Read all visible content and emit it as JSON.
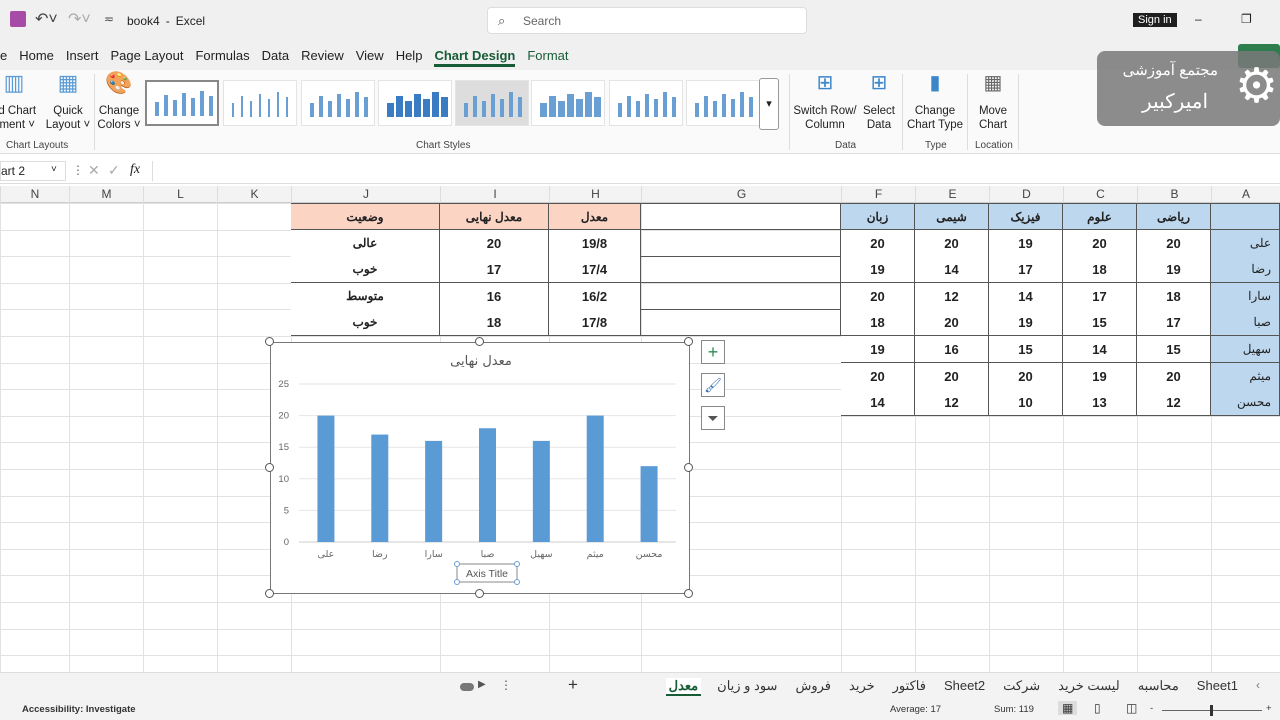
{
  "titlebar": {
    "file": "book4",
    "sep": "-",
    "app": "Excel",
    "search_placeholder": "Search",
    "sign_in": "Sign in"
  },
  "menu": [
    "e",
    "Home",
    "Insert",
    "Page Layout",
    "Formulas",
    "Data",
    "Review",
    "View",
    "Help",
    "Chart Design",
    "Format"
  ],
  "ribbon": {
    "add_chart_element": [
      "dd Chart",
      "ement ˅"
    ],
    "quick_layout": [
      "Quick",
      "Layout ˅"
    ],
    "change_colors": [
      "Change",
      "Colors ˅"
    ],
    "switch_row_column": [
      "Switch Row/",
      "Column"
    ],
    "select_data": [
      "Select",
      "Data"
    ],
    "change_chart_type": [
      "Change",
      "Chart Type"
    ],
    "move_chart": [
      "Move",
      "Chart"
    ],
    "groups": {
      "chart_layouts": "Chart Layouts",
      "chart_styles": "Chart Styles",
      "data": "Data",
      "type": "Type",
      "location": "Location"
    }
  },
  "watermark": {
    "line1": "مجتمع آموزشی",
    "line2": "امیرکبیر"
  },
  "formula_bar": {
    "name_box": "art 2",
    "fx": "fx",
    "value": ""
  },
  "columns": [
    "N",
    "M",
    "L",
    "K",
    "J",
    "I",
    "H",
    "G",
    "F",
    "E",
    "D",
    "C",
    "B",
    "A"
  ],
  "grades_table": {
    "headers": [
      "",
      "ریاضی",
      "علوم",
      "فیزیک",
      "شیمی",
      "زبان"
    ],
    "rows": [
      [
        "علی",
        "20",
        "20",
        "19",
        "20",
        "20"
      ],
      [
        "رضا",
        "19",
        "18",
        "17",
        "14",
        "19"
      ],
      [
        "سارا",
        "18",
        "17",
        "14",
        "12",
        "20"
      ],
      [
        "صبا",
        "17",
        "15",
        "19",
        "20",
        "18"
      ],
      [
        "سهیل",
        "15",
        "14",
        "15",
        "16",
        "19"
      ],
      [
        "میثم",
        "20",
        "19",
        "20",
        "20",
        "20"
      ],
      [
        "محسن",
        "12",
        "13",
        "10",
        "12",
        "14"
      ]
    ]
  },
  "avg_table": {
    "headers": [
      "معدل",
      "معدل نهایی",
      "وضعیت"
    ],
    "rows": [
      [
        "19/8",
        "20",
        "عالی"
      ],
      [
        "17/4",
        "17",
        "خوب"
      ],
      [
        "16/2",
        "16",
        "متوسط"
      ],
      [
        "17/8",
        "18",
        "خوب"
      ]
    ]
  },
  "chart_data": {
    "type": "bar",
    "title": "معدل نهایی",
    "categories": [
      "علی",
      "رضا",
      "سارا",
      "صبا",
      "سهیل",
      "میثم",
      "محسن"
    ],
    "values": [
      20,
      17,
      16,
      18,
      16,
      20,
      12
    ],
    "ylim": [
      0,
      25
    ],
    "yticks": [
      0,
      5,
      10,
      15,
      20,
      25
    ],
    "xlabel": "Axis Title",
    "grid": true,
    "color": "#5b9bd5"
  },
  "sheet_tabs": [
    "Sheet1",
    "محاسبه",
    "لیست خرید",
    "شرکت",
    "Sheet2",
    "فاکتور",
    "خرید",
    "فروش",
    "سود و زیان",
    "معدل"
  ],
  "active_tab": "معدل",
  "status": {
    "accessibility": "Accessibility: Investigate",
    "average": "Average: 17",
    "sum": "Sum: 119"
  }
}
